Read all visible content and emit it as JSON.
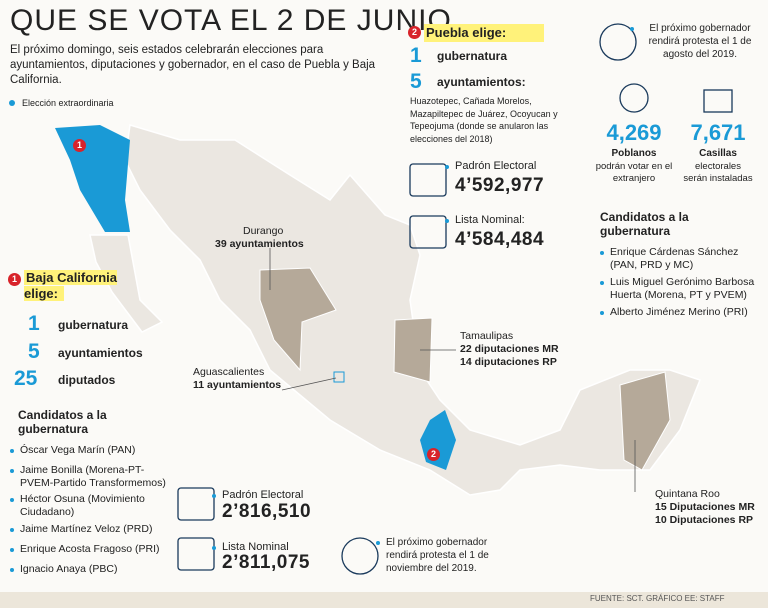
{
  "header": {
    "title": "QUE SE VOTA EL 2 DE JUNIO",
    "intro": "El próximo domingo, seis estados celebrarán elecciones para ayuntamientos, diputaciones y gobernador, en el caso de Puebla y Baja California."
  },
  "legend": "Elección extraordinaria",
  "map": {
    "labels": [
      {
        "name": "Durango",
        "lines": [
          "39 ayuntamientos"
        ]
      },
      {
        "name": "Aguascalientes",
        "lines": [
          "11 ayuntamientos"
        ]
      },
      {
        "name": "Tamaulipas",
        "lines": [
          "22 diputaciones MR",
          "14 diputaciones RP"
        ]
      },
      {
        "name": "Quintana Roo",
        "lines": [
          "15 Diputaciones MR",
          "10 Diputaciones RP"
        ]
      }
    ],
    "badges": [
      "1",
      "2"
    ]
  },
  "baja": {
    "badge": "1",
    "title": "Baja California elige:",
    "items": [
      {
        "number": "1",
        "label": "gubernatura"
      },
      {
        "number": "5",
        "label": "ayuntamientos"
      },
      {
        "number": "25",
        "label": "diputados"
      }
    ],
    "candidates_title": "Candidatos a la gubernatura",
    "candidates": [
      "Óscar Vega Marín (PAN)",
      "Jaime Bonilla (Morena-PT-PVEM-Partido Transformemos)",
      "Héctor Osuna (Movimiento Ciudadano)",
      "Jaime Martínez Veloz (PRD)",
      "Enrique Acosta Fragoso (PRI)",
      "Ignacio Anaya (PBC)"
    ],
    "padron": {
      "label": "Padrón Electoral",
      "value": "2’816,510"
    },
    "lista": {
      "label": "Lista Nominal",
      "value": "2’811,075"
    },
    "protest": "El próximo gobernador rendirá protesta el 1 de noviembre del 2019."
  },
  "puebla": {
    "badge": "2",
    "title": "Puebla elige:",
    "items": [
      {
        "number": "1",
        "label": "gubernatura"
      },
      {
        "number": "5",
        "label": "ayuntamientos:"
      }
    ],
    "municipalities": "Huazotepec, Cañada Morelos, Mazapiltepec de Juárez, Ocoyucan y Tepeojuma (donde se anularon las elecciones del 2018)",
    "padron": {
      "label": "Padrón Electoral",
      "value": "4’592,977"
    },
    "lista": {
      "label": "Lista Nominal:",
      "value": "4’584,484"
    },
    "protest": "El próximo gobernador rendirá protesta el 1 de agosto del 2019.",
    "stats": [
      {
        "value": "4,269",
        "title": "Poblanos",
        "text": "podrán votar en el extranjero"
      },
      {
        "value": "7,671",
        "title": "Casillas",
        "text": "electorales serán instaladas"
      }
    ],
    "candidates_title": "Candidatos a la gubernatura",
    "candidates": [
      "Enrique Cárdenas Sánchez (PAN, PRD y MC)",
      "Luis Miguel Gerónimo Barbosa Huerta (Morena, PT y PVEM)",
      "Alberto Jiménez Merino (PRI)"
    ]
  },
  "footer": "FUENTE: SCT. GRÁFICO EE: STAFF"
}
